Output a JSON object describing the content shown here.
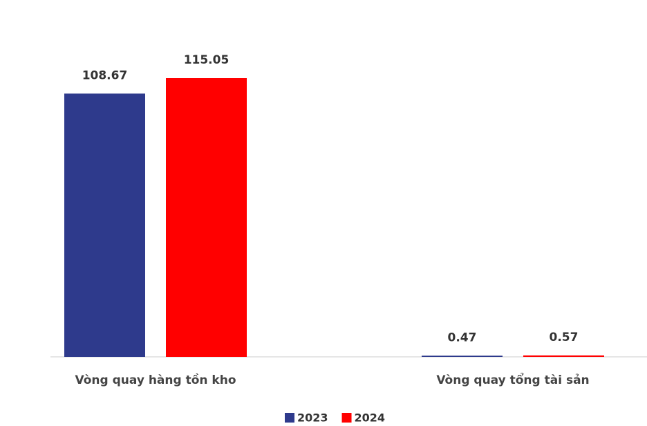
{
  "chart_data": {
    "type": "bar",
    "categories": [
      "Vòng quay hàng tồn kho",
      "Vòng quay tổng tài sản"
    ],
    "series": [
      {
        "name": "2023",
        "color": "#2e3a8c",
        "values": [
          108.67,
          0.47
        ]
      },
      {
        "name": "2024",
        "color": "#ff0000",
        "values": [
          115.05,
          0.57
        ]
      }
    ],
    "legend": "bottom"
  }
}
